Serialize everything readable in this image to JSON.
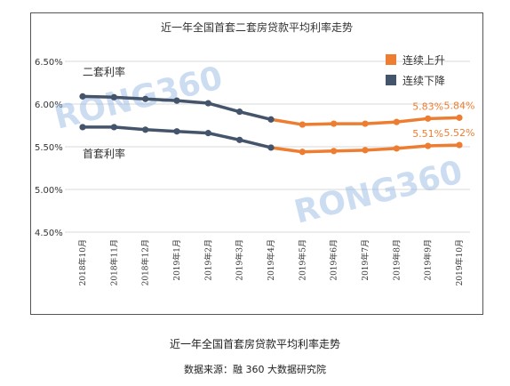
{
  "chart_data": {
    "type": "line",
    "title": "近一年全国首套二套房贷款平均利率走势",
    "categories": [
      "2018年10月",
      "2018年11月",
      "2018年12月",
      "2019年1月",
      "2019年2月",
      "2019年3月",
      "2019年4月",
      "2019年5月",
      "2019年6月",
      "2019年7月",
      "2019年8月",
      "2019年9月",
      "2019年10月"
    ],
    "series": [
      {
        "name": "二套利率",
        "values": [
          6.09,
          6.08,
          6.06,
          6.04,
          6.01,
          5.91,
          5.82,
          5.76,
          5.77,
          5.77,
          5.79,
          5.83,
          5.84
        ]
      },
      {
        "name": "首套利率",
        "values": [
          5.73,
          5.73,
          5.7,
          5.68,
          5.66,
          5.58,
          5.49,
          5.44,
          5.45,
          5.46,
          5.48,
          5.51,
          5.52
        ]
      }
    ],
    "trend_split_index": 7,
    "yticks": [
      "4.50%",
      "5.00%",
      "5.50%",
      "6.00%",
      "6.50%"
    ],
    "ylim": [
      4.5,
      6.5
    ],
    "grid": "horizontal",
    "legend": {
      "position": "top-right",
      "items": [
        {
          "label": "连续上升",
          "color": "#ED7D31"
        },
        {
          "label": "连续下降",
          "color": "#44546A"
        }
      ]
    },
    "annotations": [
      {
        "text": "5.83%",
        "series": 0,
        "index": 11
      },
      {
        "text": "5.84%",
        "series": 0,
        "index": 12
      },
      {
        "text": "5.51%",
        "series": 1,
        "index": 11
      },
      {
        "text": "5.52%",
        "series": 1,
        "index": 12
      }
    ],
    "colors": {
      "down": "#44546A",
      "up": "#ED7D31",
      "grid": "#D9D9D9",
      "label_up": "#ED7D31",
      "watermark": "#8FB4E3"
    }
  },
  "watermark": "RONG360",
  "caption": {
    "title": "近一年全国首套房贷款平均利率走势",
    "source": "数据来源：融 360 大数据研究院"
  }
}
